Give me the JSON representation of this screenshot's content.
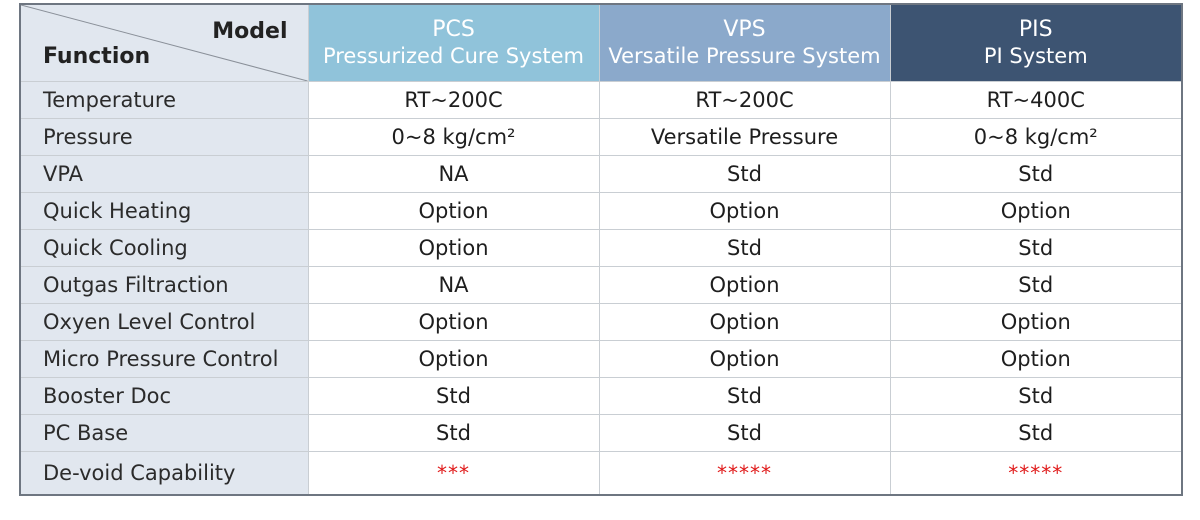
{
  "header": {
    "model_label": "Model",
    "function_label": "Function",
    "models": [
      {
        "code": "PCS",
        "full_name": "Pressurized Cure System",
        "color": "#90c3da"
      },
      {
        "code": "VPS",
        "full_name": "Versatile Pressure System",
        "color": "#8ba9cb"
      },
      {
        "code": "PIS",
        "full_name": "PI System",
        "color": "#3d5472"
      }
    ]
  },
  "rows": [
    {
      "function": "Temperature",
      "values": [
        "RT~200C",
        "RT~200C",
        "RT~400C"
      ]
    },
    {
      "function": "Pressure",
      "values": [
        "0~8 kg/cm²",
        "Versatile Pressure",
        "0~8 kg/cm²"
      ]
    },
    {
      "function": "VPA",
      "values": [
        "NA",
        "Std",
        "Std"
      ]
    },
    {
      "function": "Quick Heating",
      "values": [
        "Option",
        "Option",
        "Option"
      ]
    },
    {
      "function": "Quick Cooling",
      "values": [
        "Option",
        "Std",
        "Std"
      ]
    },
    {
      "function": "Outgas Filtraction",
      "values": [
        "NA",
        "Option",
        "Std"
      ]
    },
    {
      "function": "Oxyen Level Control",
      "values": [
        "Option",
        "Option",
        "Option"
      ]
    },
    {
      "function": "Micro Pressure Control",
      "values": [
        "Option",
        "Option",
        "Option"
      ]
    },
    {
      "function": "Booster Doc",
      "values": [
        "Std",
        "Std",
        "Std"
      ]
    },
    {
      "function": "PC Base",
      "values": [
        "Std",
        "Std",
        "Std"
      ]
    },
    {
      "function": "De-void Capability",
      "values": [
        "***",
        "*****",
        "*****"
      ]
    }
  ],
  "colors": {
    "function_column_bg": "#e1e7ef",
    "rating_star_color": "#e01a1a"
  }
}
